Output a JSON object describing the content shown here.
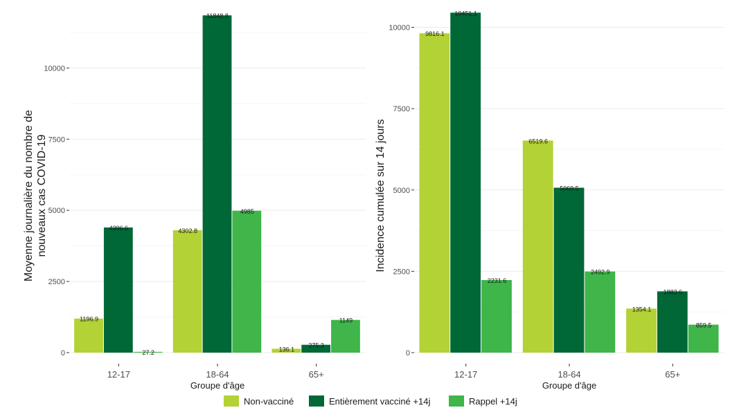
{
  "legend": [
    {
      "label": "Non-vacciné",
      "color": "#b3d235"
    },
    {
      "label": "Entièrement vacciné +14j",
      "color": "#006837"
    },
    {
      "label": "Rappel +14j",
      "color": "#3fb54a"
    }
  ],
  "chart_data": [
    {
      "type": "bar",
      "ylabel_line1": "Moyenne journalière du nombre de",
      "ylabel_line2": "nouveaux cas COVID-19",
      "xlabel": "Groupe d'âge",
      "categories": [
        "12-17",
        "18-64",
        "65+"
      ],
      "ylim": [
        0,
        12000
      ],
      "yticks": [
        "0",
        "2500",
        "5000",
        "7500",
        "10000"
      ],
      "series": [
        {
          "name": "Non-vacciné",
          "values": [
            1196.9,
            4302.8,
            136.1
          ],
          "labels": [
            "1196.9",
            "4302.8",
            "136.1"
          ]
        },
        {
          "name": "Entièrement vacciné +14j",
          "values": [
            4396.6,
            11848.8,
            275.3
          ],
          "labels": [
            "4396.6",
            "11848.8",
            "275.3"
          ]
        },
        {
          "name": "Rappel +14j",
          "values": [
            27.2,
            4985,
            1149
          ],
          "labels": [
            "27.2",
            "4985",
            "1149"
          ]
        }
      ],
      "grid": true
    },
    {
      "type": "bar",
      "ylabel_line1": "Incidence cumulée sur 14 jours",
      "ylabel_line2": "",
      "xlabel": "Groupe d'âge",
      "categories": [
        "12-17",
        "18-64",
        "65+"
      ],
      "ylim": [
        0,
        10500
      ],
      "yticks": [
        "0",
        "2500",
        "5000",
        "7500",
        "10000"
      ],
      "series": [
        {
          "name": "Non-vacciné",
          "values": [
            9816.1,
            6519.6,
            1354.1
          ],
          "labels": [
            "9816.1",
            "6519.6",
            "1354.1"
          ]
        },
        {
          "name": "Entièrement vacciné +14j",
          "values": [
            10451.1,
            5069.5,
            1883.6
          ],
          "labels": [
            "10451.1",
            "5069.5",
            "1883.6"
          ]
        },
        {
          "name": "Rappel +14j",
          "values": [
            2231.6,
            2492.9,
            859.5
          ],
          "labels": [
            "2231.6",
            "2492.9",
            "859.5"
          ]
        }
      ],
      "grid": true
    }
  ]
}
